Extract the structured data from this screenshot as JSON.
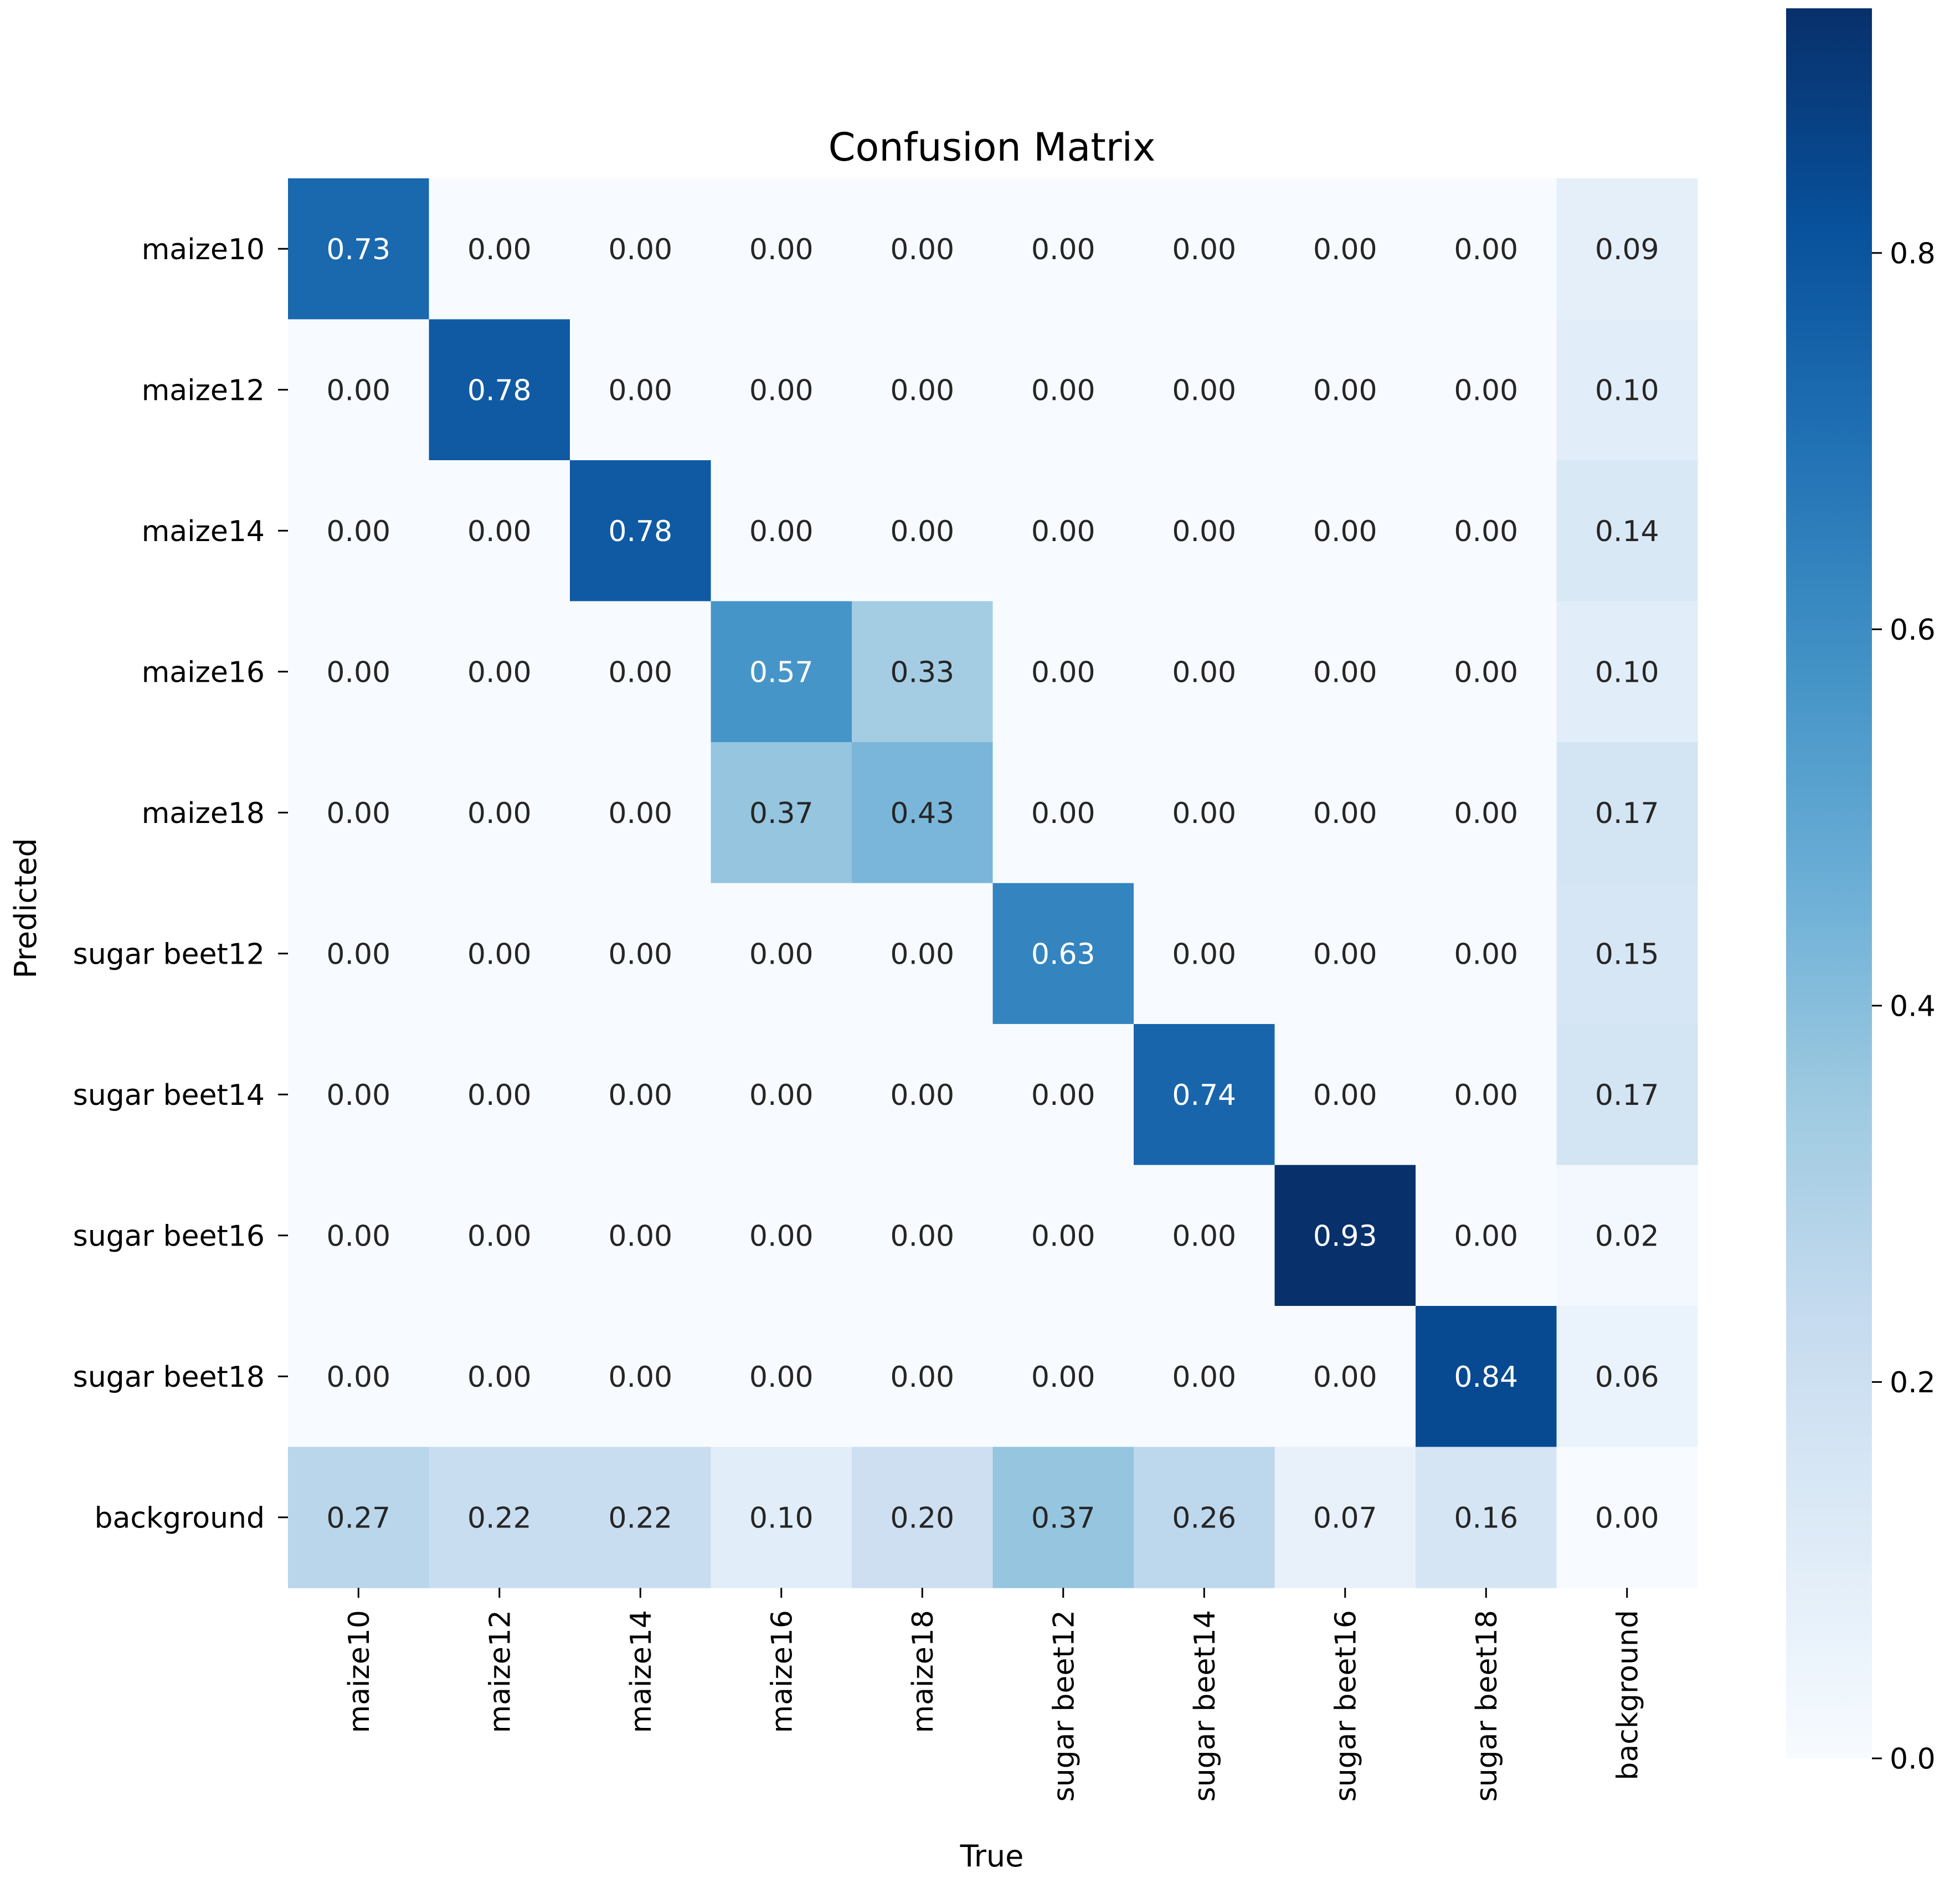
{
  "chart_data": {
    "type": "heatmap",
    "title": "Confusion Matrix",
    "xlabel": "True",
    "ylabel": "Predicted",
    "x_categories": [
      "maize10",
      "maize12",
      "maize14",
      "maize16",
      "maize18",
      "sugar beet12",
      "sugar beet14",
      "sugar beet16",
      "sugar beet18",
      "background"
    ],
    "y_categories": [
      "maize10",
      "maize12",
      "maize14",
      "maize16",
      "maize18",
      "sugar beet12",
      "sugar beet14",
      "sugar beet16",
      "sugar beet18",
      "background"
    ],
    "values": [
      [
        0.73,
        0.0,
        0.0,
        0.0,
        0.0,
        0.0,
        0.0,
        0.0,
        0.0,
        0.09
      ],
      [
        0.0,
        0.78,
        0.0,
        0.0,
        0.0,
        0.0,
        0.0,
        0.0,
        0.0,
        0.1
      ],
      [
        0.0,
        0.0,
        0.78,
        0.0,
        0.0,
        0.0,
        0.0,
        0.0,
        0.0,
        0.14
      ],
      [
        0.0,
        0.0,
        0.0,
        0.57,
        0.33,
        0.0,
        0.0,
        0.0,
        0.0,
        0.1
      ],
      [
        0.0,
        0.0,
        0.0,
        0.37,
        0.43,
        0.0,
        0.0,
        0.0,
        0.0,
        0.17
      ],
      [
        0.0,
        0.0,
        0.0,
        0.0,
        0.0,
        0.63,
        0.0,
        0.0,
        0.0,
        0.15
      ],
      [
        0.0,
        0.0,
        0.0,
        0.0,
        0.0,
        0.0,
        0.74,
        0.0,
        0.0,
        0.17
      ],
      [
        0.0,
        0.0,
        0.0,
        0.0,
        0.0,
        0.0,
        0.0,
        0.93,
        0.0,
        0.02
      ],
      [
        0.0,
        0.0,
        0.0,
        0.0,
        0.0,
        0.0,
        0.0,
        0.0,
        0.84,
        0.06
      ],
      [
        0.27,
        0.22,
        0.22,
        0.1,
        0.2,
        0.37,
        0.26,
        0.07,
        0.16,
        0.0
      ]
    ],
    "colormap": "Blues",
    "vmin": 0.0,
    "vmax": 0.93,
    "colorbar_ticks": [
      0.0,
      0.2,
      0.4,
      0.6,
      0.8
    ],
    "colorbar_tick_labels": [
      "0.0",
      "0.2",
      "0.4",
      "0.6",
      "0.8"
    ]
  }
}
